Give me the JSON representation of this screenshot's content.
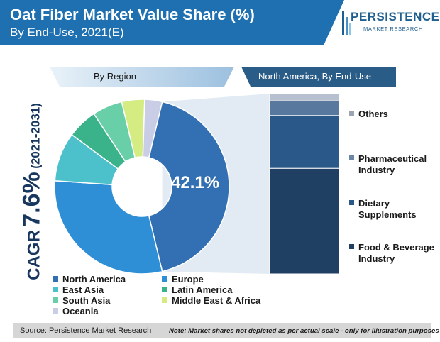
{
  "header": {
    "title": "Oat Fiber Market Value Share (%)",
    "subtitle": "By End-Use, 2021(E)"
  },
  "logo": {
    "name": "PERSISTENCE",
    "tagline": "MARKET RESEARCH"
  },
  "cagr": {
    "label": "CAGR",
    "value": "7.6%",
    "period": "(2021-2031)"
  },
  "colors": {
    "header": "#1e70b0",
    "cagr_text": "#17375e"
  },
  "chart_data": [
    {
      "type": "pie",
      "title": "By Region",
      "center_label": "42.1%",
      "categories": [
        "North America",
        "Europe",
        "East Asia",
        "Latin America",
        "South Asia",
        "Middle East & Africa",
        "Oceania"
      ],
      "values": [
        42.1,
        29.5,
        9.0,
        5.5,
        5.5,
        4.2,
        3.2
      ],
      "colors": [
        "#3370b3",
        "#2f8fd6",
        "#4cc1cc",
        "#3ab28a",
        "#68cfa9",
        "#d4ec82",
        "#c9cde6"
      ],
      "legend": [
        {
          "label": "North America",
          "color": "#3370b3"
        },
        {
          "label": "Europe",
          "color": "#2f8fd6"
        },
        {
          "label": "East Asia",
          "color": "#4cc1cc"
        },
        {
          "label": "Latin America",
          "color": "#3ab28a"
        },
        {
          "label": "South Asia",
          "color": "#68cfa9"
        },
        {
          "label": "Middle East & Africa",
          "color": "#d4ec82"
        },
        {
          "label": "Oceania",
          "color": "#c9cde6"
        }
      ]
    },
    {
      "type": "bar",
      "stacked": true,
      "title": "North America, By End-Use",
      "series": [
        {
          "name": "Food & Beverage Industry",
          "value": 58,
          "color": "#1f3f63"
        },
        {
          "name": "Dietary Supplements",
          "value": 29,
          "color": "#2a5888"
        },
        {
          "name": "Pharmaceutical Industry",
          "value": 8,
          "color": "#58789e"
        },
        {
          "name": "Others",
          "value": 4,
          "color": "#b7c0cf"
        }
      ]
    }
  ],
  "stack_labels": {
    "others": "Others",
    "pharmaceutical": [
      "Pharmaceutical",
      "Industry"
    ],
    "dietary": [
      "Dietary",
      "Supplements"
    ],
    "food": [
      "Food & Beverage",
      "Industry"
    ]
  },
  "footer": {
    "source": "Source: Persistence Market Research",
    "note": "Note: Market shares not depicted as per actual scale - only for illustration purposes"
  }
}
